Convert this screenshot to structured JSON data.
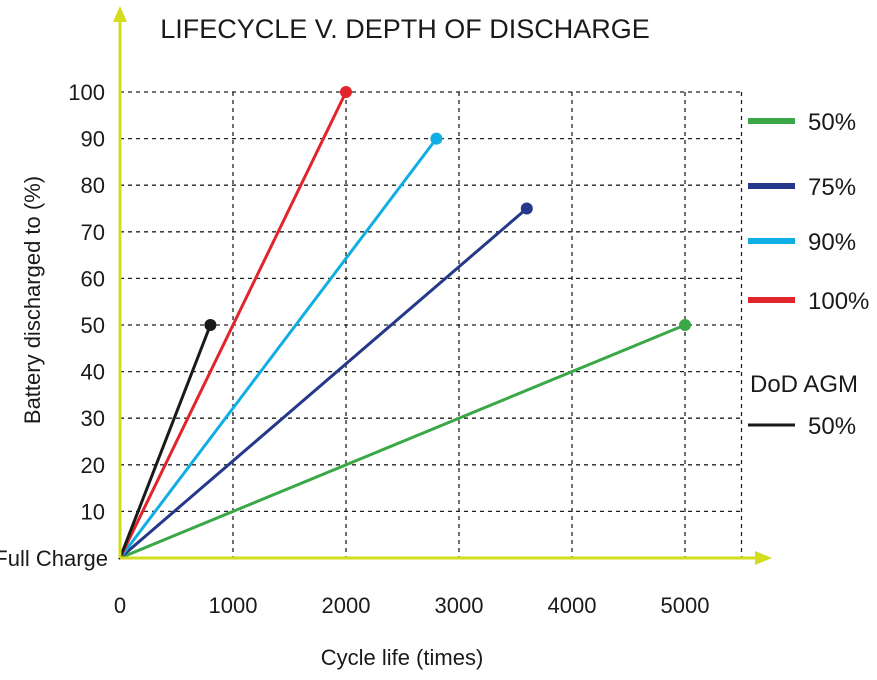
{
  "chart_data": {
    "type": "line",
    "title": "LIFECYCLE V. DEPTH OF DISCHARGE",
    "xlabel": "Cycle life (times)",
    "ylabel": "Battery discharged to (%)",
    "xlim": [
      0,
      5500
    ],
    "ylim": [
      0,
      100
    ],
    "x_ticks": [
      0,
      1000,
      2000,
      3000,
      4000,
      5000
    ],
    "x_tick_labels": [
      "0",
      "1000",
      "2000",
      "3000",
      "4000",
      "5000"
    ],
    "y_ticks": [
      0,
      10,
      20,
      30,
      40,
      50,
      60,
      70,
      80,
      90,
      100
    ],
    "y_tick_labels": [
      "Full Charge",
      "10",
      "20",
      "30",
      "40",
      "50",
      "60",
      "70",
      "80",
      "90",
      "100"
    ],
    "grid": true,
    "legend_position": "right",
    "axis_color": "#d4dc1e",
    "series": [
      {
        "name": "50%",
        "color": "#3aa846",
        "x": [
          0,
          5000
        ],
        "y": [
          0,
          50
        ]
      },
      {
        "name": "75%",
        "color": "#25388a",
        "x": [
          0,
          3600
        ],
        "y": [
          0,
          75
        ]
      },
      {
        "name": "90%",
        "color": "#11aee3",
        "x": [
          0,
          2800
        ],
        "y": [
          0,
          90
        ]
      },
      {
        "name": "100%",
        "color": "#e2242b",
        "x": [
          0,
          2000
        ],
        "y": [
          0,
          100
        ]
      },
      {
        "name": "50%",
        "group": "DoD AGM",
        "color": "#1a1a1a",
        "x": [
          0,
          800
        ],
        "y": [
          0,
          50
        ]
      }
    ],
    "legend_group_heading": "DoD AGM"
  }
}
